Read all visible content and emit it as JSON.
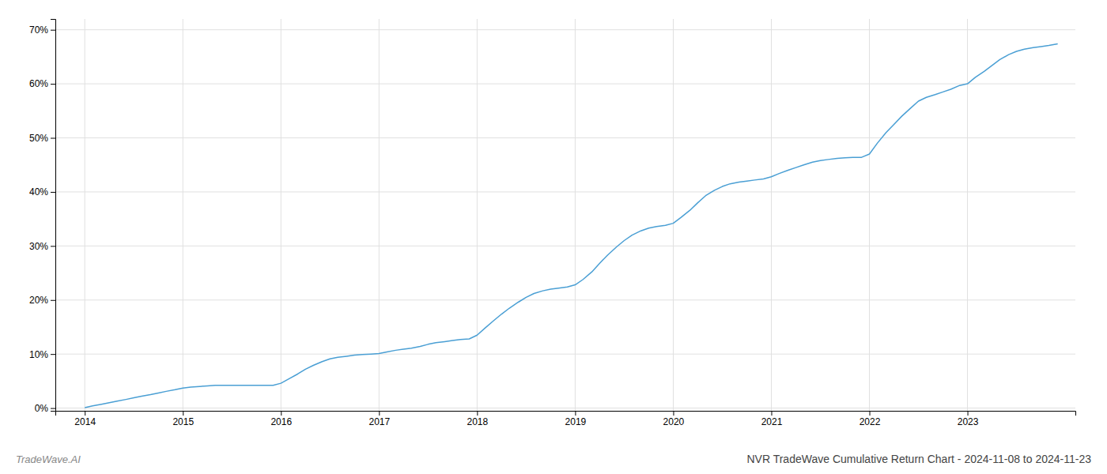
{
  "chart_data": {
    "type": "line",
    "title": "NVR TradeWave Cumulative Return Chart - 2024-11-08 to 2024-11-23",
    "annotations": [
      "TradeWave.AI"
    ],
    "color": "#4a9fd4",
    "grid": true,
    "xlim": [
      2013.7,
      2024.1
    ],
    "xticks": [
      2014,
      2015,
      2016,
      2017,
      2018,
      2019,
      2020,
      2021,
      2022,
      2023
    ],
    "ylim": [
      -0.005,
      0.72
    ],
    "yticks": [
      {
        "value": 0.0,
        "label": "0%"
      },
      {
        "value": 0.1,
        "label": "10%"
      },
      {
        "value": 0.2,
        "label": "20%"
      },
      {
        "value": 0.3,
        "label": "30%"
      },
      {
        "value": 0.4,
        "label": "40%"
      },
      {
        "value": 0.5,
        "label": "50%"
      },
      {
        "value": 0.6,
        "label": "60%"
      },
      {
        "value": 0.7,
        "label": "70%"
      }
    ],
    "x": [
      2014.0,
      2014.08,
      2014.17,
      2014.25,
      2014.33,
      2014.42,
      2014.5,
      2014.58,
      2014.67,
      2014.75,
      2014.83,
      2014.92,
      2015.0,
      2015.08,
      2015.17,
      2015.25,
      2015.33,
      2015.42,
      2015.5,
      2015.58,
      2015.67,
      2015.75,
      2015.83,
      2015.92,
      2016.0,
      2016.08,
      2016.17,
      2016.25,
      2016.33,
      2016.42,
      2016.5,
      2016.58,
      2016.67,
      2016.75,
      2016.83,
      2016.92,
      2017.0,
      2017.08,
      2017.17,
      2017.25,
      2017.33,
      2017.42,
      2017.5,
      2017.58,
      2017.67,
      2017.75,
      2017.83,
      2017.92,
      2018.0,
      2018.08,
      2018.17,
      2018.25,
      2018.33,
      2018.42,
      2018.5,
      2018.58,
      2018.67,
      2018.75,
      2018.83,
      2018.92,
      2019.0,
      2019.08,
      2019.17,
      2019.25,
      2019.33,
      2019.42,
      2019.5,
      2019.58,
      2019.67,
      2019.75,
      2019.83,
      2019.92,
      2020.0,
      2020.08,
      2020.17,
      2020.25,
      2020.33,
      2020.42,
      2020.5,
      2020.58,
      2020.67,
      2020.75,
      2020.83,
      2020.92,
      2021.0,
      2021.08,
      2021.17,
      2021.25,
      2021.33,
      2021.42,
      2021.5,
      2021.58,
      2021.67,
      2021.75,
      2021.83,
      2021.92,
      2022.0,
      2022.08,
      2022.17,
      2022.25,
      2022.33,
      2022.42,
      2022.5,
      2022.58,
      2022.67,
      2022.75,
      2022.83,
      2022.92,
      2023.0,
      2023.08,
      2023.17,
      2023.25,
      2023.33,
      2023.42,
      2023.5,
      2023.58,
      2023.67,
      2023.75,
      2023.83,
      2023.92
    ],
    "values": [
      0.001,
      0.004,
      0.007,
      0.01,
      0.013,
      0.016,
      0.019,
      0.022,
      0.025,
      0.028,
      0.031,
      0.034,
      0.037,
      0.039,
      0.04,
      0.041,
      0.042,
      0.042,
      0.042,
      0.042,
      0.042,
      0.042,
      0.042,
      0.042,
      0.046,
      0.054,
      0.063,
      0.072,
      0.079,
      0.086,
      0.091,
      0.094,
      0.096,
      0.098,
      0.099,
      0.1,
      0.101,
      0.104,
      0.107,
      0.109,
      0.111,
      0.114,
      0.118,
      0.121,
      0.123,
      0.125,
      0.127,
      0.128,
      0.135,
      0.148,
      0.162,
      0.174,
      0.185,
      0.196,
      0.205,
      0.212,
      0.217,
      0.22,
      0.222,
      0.224,
      0.228,
      0.238,
      0.252,
      0.268,
      0.283,
      0.298,
      0.31,
      0.32,
      0.328,
      0.333,
      0.336,
      0.338,
      0.342,
      0.353,
      0.366,
      0.38,
      0.393,
      0.403,
      0.41,
      0.415,
      0.418,
      0.42,
      0.422,
      0.424,
      0.428,
      0.434,
      0.44,
      0.445,
      0.45,
      0.455,
      0.458,
      0.46,
      0.462,
      0.463,
      0.464,
      0.464,
      0.47,
      0.49,
      0.51,
      0.525,
      0.54,
      0.555,
      0.568,
      0.575,
      0.58,
      0.585,
      0.59,
      0.597,
      0.6,
      0.612,
      0.623,
      0.634,
      0.645,
      0.654,
      0.66,
      0.664,
      0.667,
      0.669,
      0.671,
      0.674
    ]
  }
}
